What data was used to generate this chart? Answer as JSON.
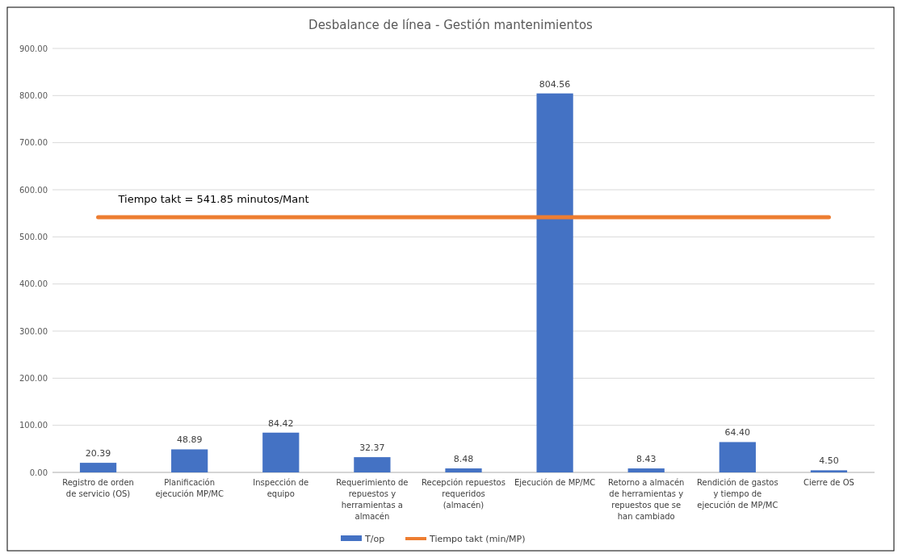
{
  "chart_data": {
    "type": "bar",
    "title": "Desbalance de línea - Gestión mantenimientos",
    "categories": [
      "Registro de orden de servicio (OS)",
      "Planificación ejecución MP/MC",
      "Inspección de equipo",
      "Requerimiento de repuestos y herramientas a almacén",
      "Recepción repuestos requeridos (almacén)",
      "Ejecución de MP/MC",
      "Retorno a almacén de herramientas y repuestos que se han cambiado",
      "Rendición de gastos y tiempo de ejecución de MP/MC",
      "Cierre de OS"
    ],
    "series": [
      {
        "name": "T/op",
        "color": "#4472c4",
        "values": [
          20.39,
          48.89,
          84.42,
          32.37,
          8.48,
          804.56,
          8.43,
          64.4,
          4.5
        ],
        "value_labels": [
          "20.39",
          "48.89",
          "84.42",
          "32.37",
          "8.48",
          "804.56",
          "8.43",
          "64.40",
          "4.50"
        ]
      },
      {
        "name": "Tiempo takt (min/MP)",
        "type": "line",
        "color": "#ed7d31",
        "values": [
          541.85,
          541.85,
          541.85,
          541.85,
          541.85,
          541.85,
          541.85,
          541.85,
          541.85
        ]
      }
    ],
    "annotations": [
      "Tiempo takt = 541.85 minutos/Mant"
    ],
    "ylim": [
      0,
      900
    ],
    "yticks": [
      {
        "value": 0,
        "label": "0.00"
      },
      {
        "value": 100,
        "label": "100.00"
      },
      {
        "value": 200,
        "label": "200.00"
      },
      {
        "value": 300,
        "label": "300.00"
      },
      {
        "value": 400,
        "label": "400.00"
      },
      {
        "value": 500,
        "label": "500.00"
      },
      {
        "value": 600,
        "label": "600.00"
      },
      {
        "value": 700,
        "label": "700.00"
      },
      {
        "value": 800,
        "label": "800.00"
      },
      {
        "value": 900,
        "label": "900.00"
      }
    ],
    "grid": "y",
    "legend": "bottom"
  }
}
